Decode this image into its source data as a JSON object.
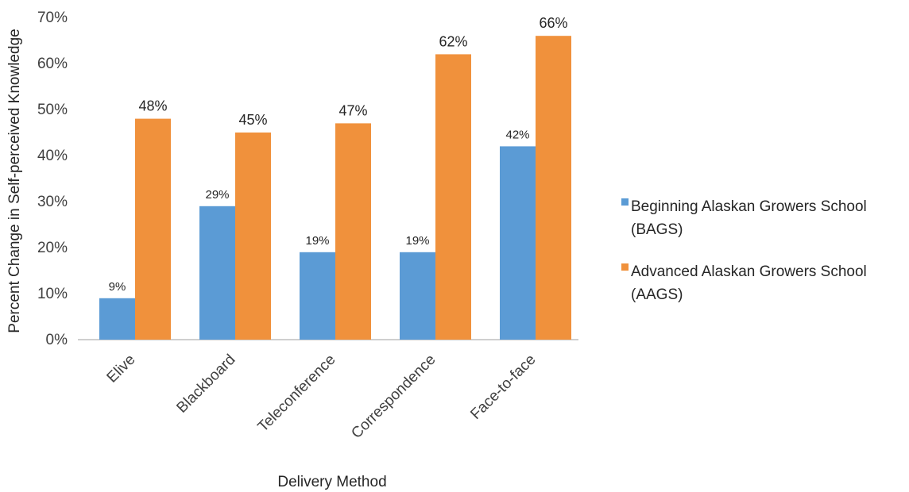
{
  "chart_data": {
    "type": "bar",
    "categories": [
      "Elive",
      "Blackboard",
      "Teleconference",
      "Correspondence",
      "Face-to-face"
    ],
    "series": [
      {
        "name_lines": [
          "Beginning Alaskan Growers School",
          "(BAGS)"
        ],
        "color": "#5b9bd5",
        "values": [
          9,
          29,
          19,
          19,
          42
        ],
        "labels": [
          "9%",
          "29%",
          "19%",
          "19%",
          "42%"
        ]
      },
      {
        "name_lines": [
          "Advanced Alaskan Growers School",
          "(AAGS)"
        ],
        "color": "#f0913c",
        "values": [
          48,
          45,
          47,
          62,
          66
        ],
        "labels": [
          "48%",
          "45%",
          "47%",
          "62%",
          "66%"
        ]
      }
    ],
    "xlabel": "Delivery Method",
    "ylabel": "Percent Change in Self-perceived Knowledge",
    "ylim": [
      0,
      70
    ],
    "yticks": [
      "0%",
      "10%",
      "20%",
      "30%",
      "40%",
      "50%",
      "60%",
      "70%"
    ],
    "grid": false,
    "legend_position": "right"
  }
}
